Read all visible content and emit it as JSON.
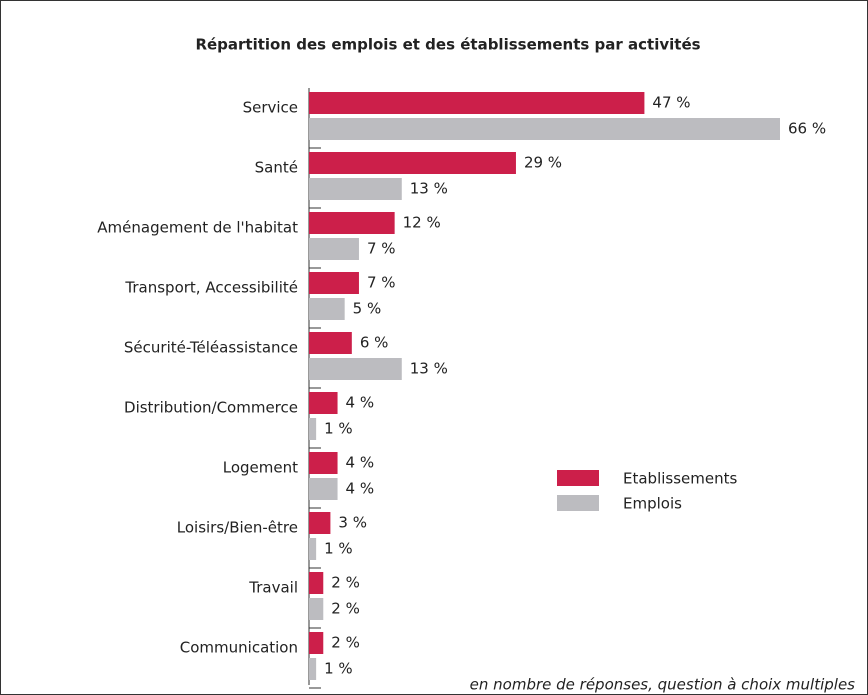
{
  "chart_data": {
    "type": "hbar",
    "title": "Répartition des emplois et des établissements par activités",
    "categories": [
      "Service",
      "Santé",
      "Aménagement de l'habitat",
      "Transport, Accessibilité",
      "Sécurité-Téléassistance",
      "Distribution/Commerce",
      "Logement",
      "Loisirs/Bien-être",
      "Travail",
      "Communication"
    ],
    "series": [
      {
        "name": "Etablissements",
        "color": "#cc1f4a",
        "values": [
          47,
          29,
          12,
          7,
          6,
          4,
          4,
          3,
          2,
          2
        ],
        "value_labels": [
          "47  %",
          "29 %",
          "12 %",
          "7 %",
          "6 %",
          "4 %",
          "4 %",
          "3 %",
          "2 %",
          "2 %"
        ]
      },
      {
        "name": "Emplois",
        "color": "#bcbcc0",
        "values": [
          66,
          13,
          7,
          5,
          13,
          1,
          4,
          1,
          2,
          1
        ],
        "value_labels": [
          "66 %",
          "13 %",
          "7 %",
          "5 %",
          "13 %",
          "1 %",
          "4 %",
          "1 %",
          "2 %",
          "1 %"
        ]
      }
    ],
    "legend": "right",
    "note": "en nombre de réponses, question à choix multiples"
  }
}
